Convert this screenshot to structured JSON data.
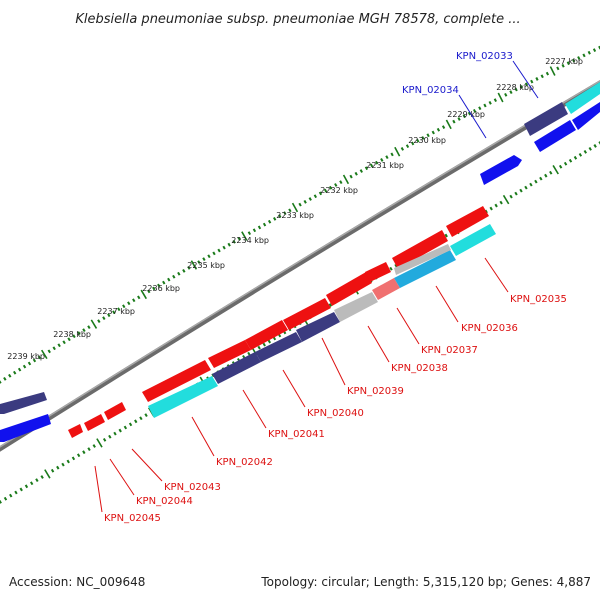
{
  "title": "Klebsiella pneumoniae subsp. pneumoniae MGH 78578, complete ...",
  "footer": {
    "accession": "Accession: NC_009648",
    "summary": "Topology: circular; Length: 5,315,120 bp; Genes: 4,887"
  },
  "colors": {
    "tick": "#1a7a1a",
    "backbone": "#777777",
    "gene_red": "#ee1111",
    "gene_blue": "#1111ee",
    "gene_navy": "#3b3b80",
    "gene_cyan": "#22dddd",
    "gene_gray": "#bbbbbb",
    "gene_salmon": "#f07070",
    "label_forward": "#1a1acc",
    "label_reverse": "#dd1111"
  },
  "ticks": [
    {
      "label": "2227 kbp"
    },
    {
      "label": "2228 kbp"
    },
    {
      "label": "2229 kbp"
    },
    {
      "label": "2230 kbp"
    },
    {
      "label": "2231 kbp"
    },
    {
      "label": "2232 kbp"
    },
    {
      "label": "2233 kbp"
    },
    {
      "label": "2234 kbp"
    },
    {
      "label": "2235 kbp"
    },
    {
      "label": "2236 kbp"
    },
    {
      "label": "2237 kbp"
    },
    {
      "label": "2238 kbp"
    },
    {
      "label": "2239 kbp"
    }
  ],
  "forward_labels": [
    {
      "name": "KPN_02033"
    },
    {
      "name": "KPN_02034"
    }
  ],
  "reverse_labels": [
    {
      "name": "KPN_02035"
    },
    {
      "name": "KPN_02036"
    },
    {
      "name": "KPN_02037"
    },
    {
      "name": "KPN_02038"
    },
    {
      "name": "KPN_02039"
    },
    {
      "name": "KPN_02040"
    },
    {
      "name": "KPN_02041"
    },
    {
      "name": "KPN_02042"
    },
    {
      "name": "KPN_02043"
    },
    {
      "name": "KPN_02044"
    },
    {
      "name": "KPN_02045"
    }
  ]
}
